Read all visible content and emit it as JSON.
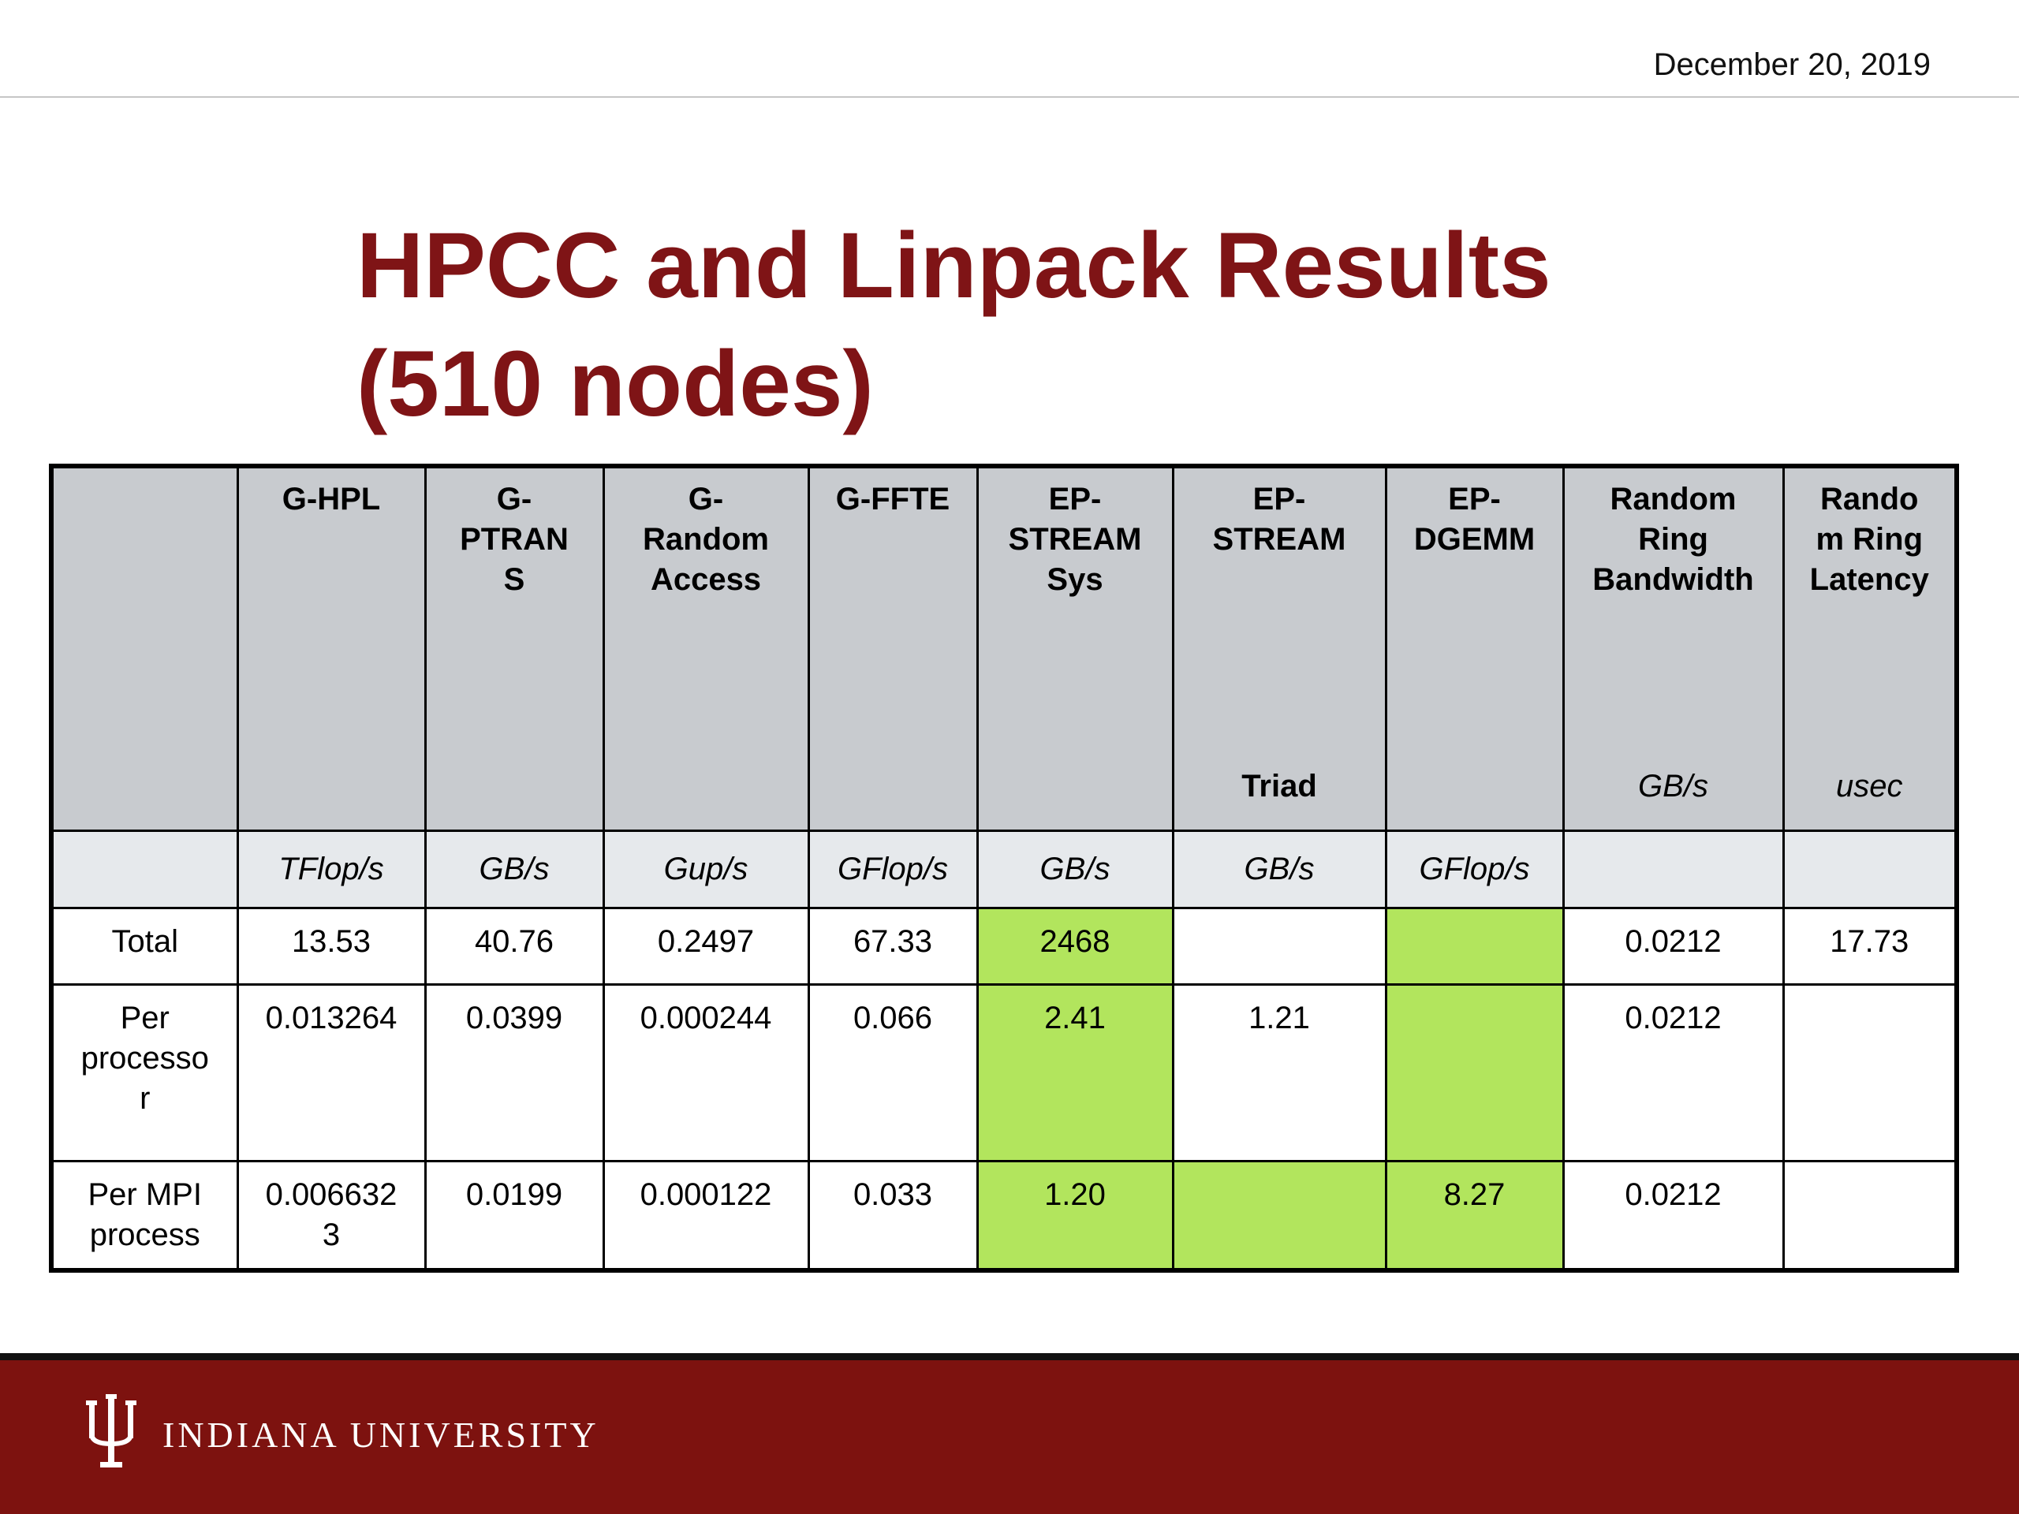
{
  "header": {
    "date": "December 20, 2019"
  },
  "title": {
    "line1": "HPCC and Linpack Results",
    "line2": "(510 nodes)"
  },
  "table": {
    "columns": [
      {
        "label": "",
        "sub": "",
        "unit": ""
      },
      {
        "label": "G-HPL",
        "sub": "",
        "unit": "TFlop/s"
      },
      {
        "label": "G-\nPTRAN\nS",
        "sub": "",
        "unit": "GB/s"
      },
      {
        "label": "G-\nRandom\nAccess",
        "sub": "",
        "unit": "Gup/s"
      },
      {
        "label": "G-FFTE",
        "sub": "",
        "unit": "GFlop/s"
      },
      {
        "label": "EP-\nSTREAM\nSys",
        "sub": "",
        "unit": "GB/s"
      },
      {
        "label": "EP-\nSTREAM",
        "sub": "Triad",
        "unit": "GB/s"
      },
      {
        "label": "EP-\nDGEMM",
        "sub": "",
        "unit": "GFlop/s"
      },
      {
        "label": "Random\nRing\nBandwidth",
        "sub": "GB/s",
        "unit": ""
      },
      {
        "label": "Rando\nm Ring\nLatency",
        "sub": "usec",
        "unit": ""
      }
    ],
    "rows": [
      {
        "label": "Total",
        "cells": [
          "13.53",
          "40.76",
          "0.2497",
          "67.33",
          "2468",
          "",
          "",
          "0.0212",
          "17.73"
        ]
      },
      {
        "label": "Per\nprocesso\nr",
        "cells": [
          "0.013264",
          "0.0399",
          "0.000244",
          "0.066",
          "2.41",
          "1.21",
          "",
          "0.0212",
          ""
        ]
      },
      {
        "label": "Per MPI\nprocess",
        "cells": [
          "0.006632\n3",
          "0.0199",
          "0.000122",
          "0.033",
          "1.20",
          "",
          "8.27",
          "0.0212",
          ""
        ]
      }
    ],
    "highlight_color": "#b2e55d",
    "highlighted": [
      [
        0,
        5
      ],
      [
        0,
        7
      ],
      [
        1,
        5
      ],
      [
        1,
        7
      ],
      [
        2,
        5
      ],
      [
        2,
        6
      ],
      [
        2,
        7
      ]
    ]
  },
  "footer": {
    "wordmark": "INDIANA UNIVERSITY",
    "logo_icon": "iu-trident-icon"
  },
  "colors": {
    "title": "#7f1416",
    "footer": "#7d120f",
    "header_bg": "#c8cbcf",
    "unit_bg": "#e6e9ec"
  }
}
